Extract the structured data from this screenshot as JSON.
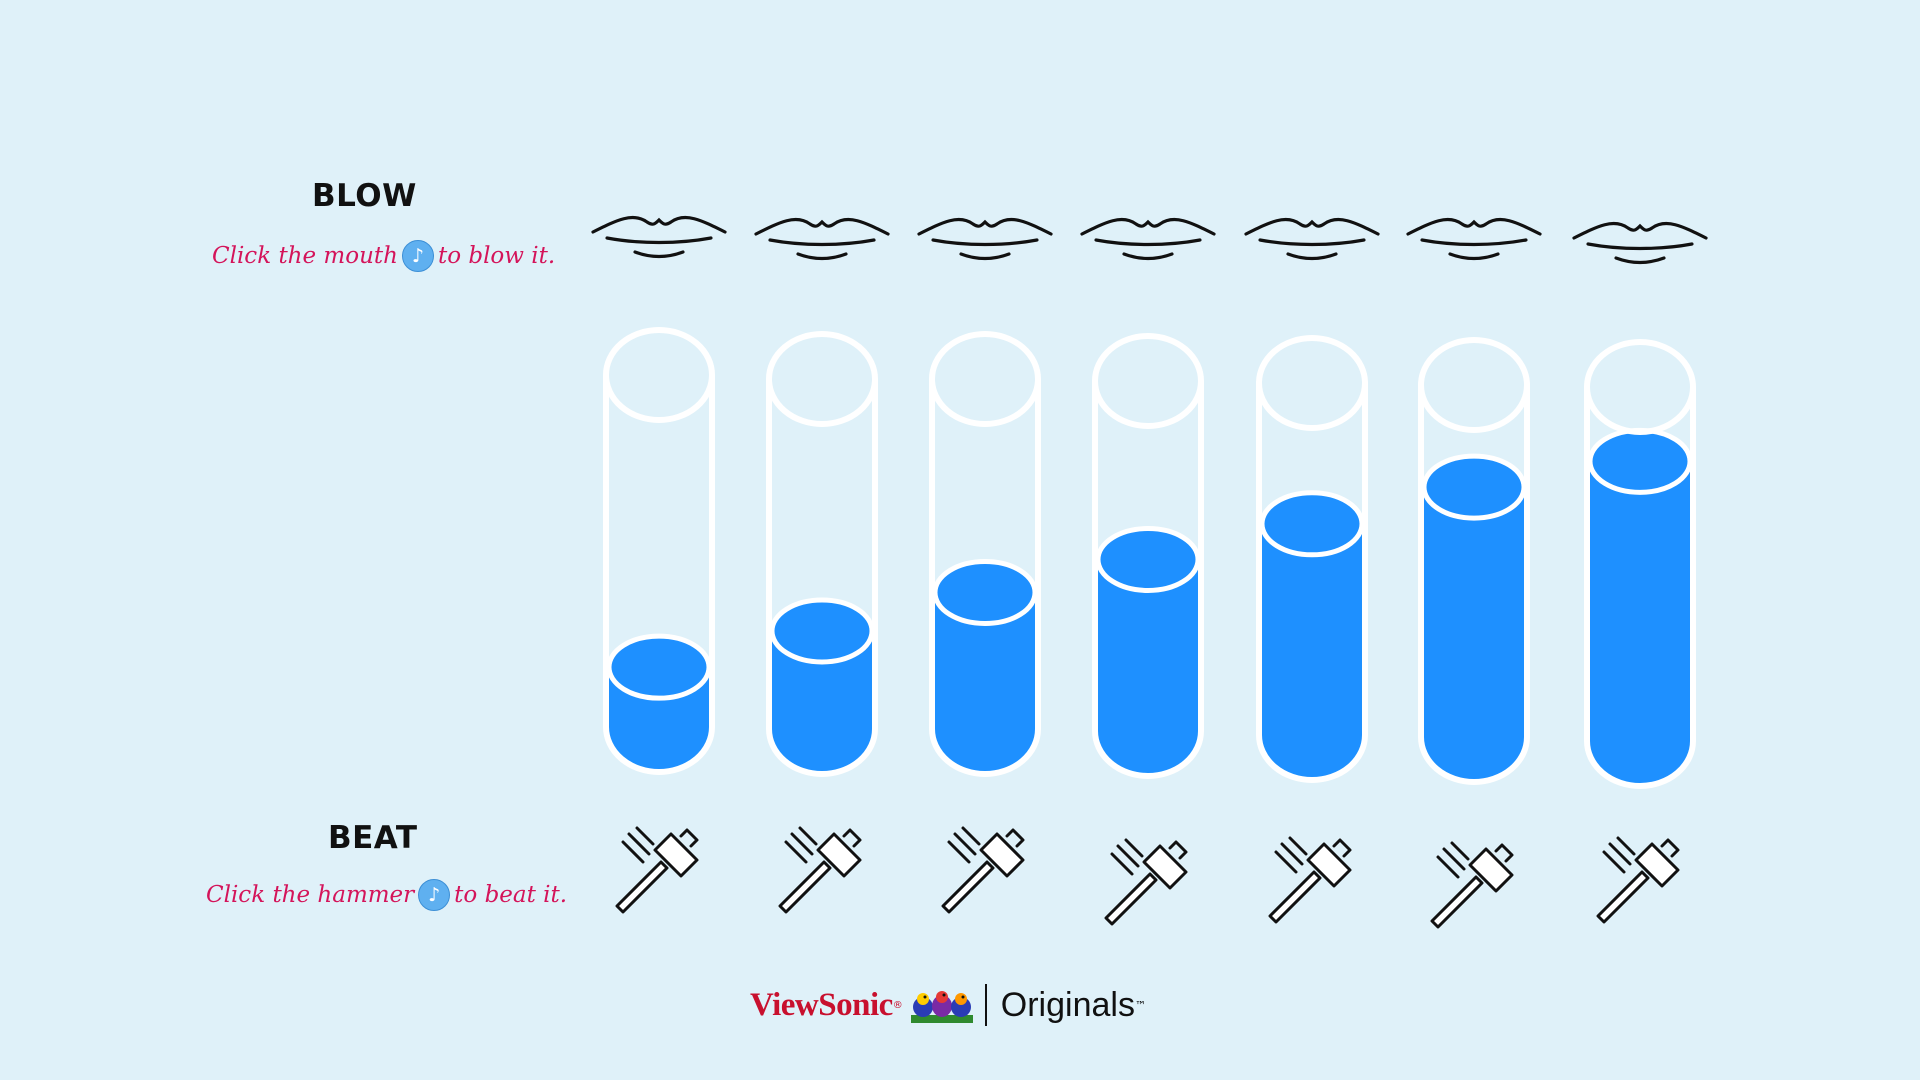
{
  "blow": {
    "title": "BLOW",
    "hint_before": "Click the mouth",
    "hint_after": "to blow it.",
    "note_symbol": "♪"
  },
  "beat": {
    "title": "BEAT",
    "hint_before": "Click the hammer",
    "hint_after": "to beat it.",
    "note_symbol": "♪"
  },
  "tubes": {
    "fill_levels": [
      0.17,
      0.28,
      0.39,
      0.49,
      0.6,
      0.71,
      0.79
    ],
    "water_color": "#1e90ff",
    "outline_color": "#ffffff"
  },
  "footer": {
    "brand": "ViewSonic",
    "brand_mark": "®",
    "label": "Originals",
    "label_mark": "™"
  },
  "colors": {
    "background": "#dff1f9",
    "hint_text": "#d4145a",
    "brand": "#c8102e"
  }
}
